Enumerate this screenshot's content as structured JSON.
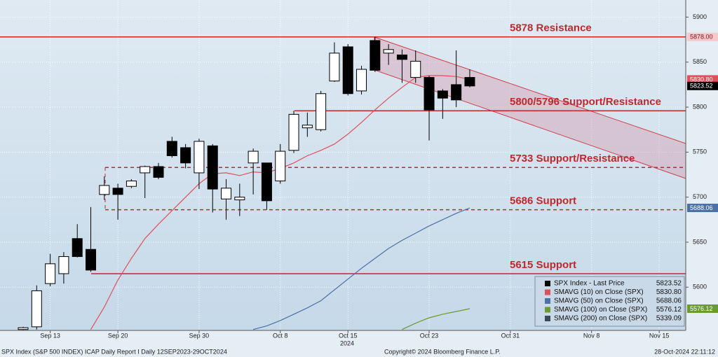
{
  "chart_data": {
    "type": "candlestick",
    "x": [
      0,
      1,
      2,
      3,
      4,
      5,
      6,
      7,
      8,
      9,
      10,
      11,
      12,
      13,
      14,
      15,
      16,
      17,
      18,
      19,
      20,
      21,
      22,
      23,
      24,
      25,
      26,
      27,
      28,
      29,
      30,
      31,
      32,
      33
    ],
    "xlim": [
      -1.71,
      48.96
    ],
    "xticks": [
      {
        "value": 2,
        "label": "Sep 13"
      },
      {
        "value": 7,
        "label": "Sep 20"
      },
      {
        "value": 13,
        "label": "Sep 30"
      },
      {
        "value": 19,
        "label": "Oct 8"
      },
      {
        "value": 24,
        "label": "Oct 15"
      },
      {
        "value": 30,
        "label": "Oct 23"
      },
      {
        "value": 36,
        "label": "Oct 31"
      },
      {
        "value": 42,
        "label": "Nov 8"
      },
      {
        "value": 47,
        "label": "Nov 15"
      }
    ],
    "year_label": "2024",
    "ylim": [
      5552,
      5919
    ],
    "yticks": [
      5600,
      5650,
      5700,
      5750,
      5800,
      5850,
      5900
    ],
    "grid": true,
    "candles": {
      "name": "SPX Index - Last Price",
      "last_label": "5823.52",
      "color": "#000000",
      "open": [
        5553,
        5556,
        5604,
        5615,
        5654,
        5642,
        5703,
        5710,
        5712,
        5727,
        5734,
        5762,
        5755,
        5727,
        5757,
        5698,
        5697,
        5738,
        5738,
        5718,
        5752,
        5777,
        5775,
        5829,
        5867,
        5818,
        5874,
        5860,
        5858,
        5833,
        5833,
        5818,
        5825,
        5833
      ],
      "high": [
        5556,
        5602,
        5637,
        5639,
        5670,
        5689,
        5723,
        5715,
        5720,
        5735,
        5738,
        5767,
        5759,
        5765,
        5759,
        5720,
        5715,
        5754,
        5738,
        5759,
        5796,
        5794,
        5818,
        5872,
        5870,
        5846,
        5878,
        5870,
        5864,
        5863,
        5835,
        5820,
        5863,
        5842
      ],
      "low": [
        5552,
        5553,
        5601,
        5604,
        5633,
        5617,
        5697,
        5675,
        5710,
        5699,
        5720,
        5744,
        5732,
        5709,
        5683,
        5675,
        5679,
        5703,
        5686,
        5715,
        5749,
        5767,
        5773,
        5828,
        5813,
        5814,
        5839,
        5847,
        5827,
        5827,
        5763,
        5787,
        5800,
        5822
      ],
      "close": [
        5555,
        5596,
        5626,
        5634,
        5634,
        5619,
        5713,
        5703,
        5718,
        5734,
        5722,
        5746,
        5738,
        5762,
        5709,
        5710,
        5700,
        5751,
        5696,
        5751,
        5792,
        5780,
        5815,
        5860,
        5815,
        5842,
        5841,
        5864,
        5853,
        5851,
        5797,
        5810,
        5808,
        5823.52
      ]
    },
    "series": [
      {
        "name": "SMAVG (10)  on Close (SPX)",
        "last_label": "5830.80",
        "color": "#e0505a",
        "values": [
          null,
          null,
          null,
          null,
          null,
          5553,
          5578,
          5608,
          5632,
          5654,
          5670,
          5685,
          5700,
          5715,
          5726,
          5727,
          5724,
          5728,
          5727,
          5732,
          5738,
          5746,
          5752,
          5759,
          5770,
          5783,
          5797,
          5810,
          5822,
          5833,
          5835,
          5835,
          5834,
          5830.8
        ]
      },
      {
        "name": "SMAVG (50)  on Close (SPX)",
        "last_label": "5688.06",
        "color": "#4a72a8",
        "values": [
          null,
          null,
          null,
          null,
          null,
          null,
          null,
          null,
          null,
          null,
          null,
          null,
          null,
          null,
          null,
          null,
          null,
          5553,
          5557,
          5563,
          5570,
          5577,
          5585,
          5597,
          5609,
          5621,
          5632,
          5643,
          5652,
          5660,
          5668,
          5675,
          5682,
          5688.06
        ]
      },
      {
        "name": "SMAVG (100)  on Close (SPX)",
        "last_label": "5576.12",
        "color": "#6a9a30",
        "values": [
          null,
          null,
          null,
          null,
          null,
          null,
          null,
          null,
          null,
          null,
          null,
          null,
          null,
          null,
          null,
          null,
          null,
          null,
          null,
          null,
          null,
          null,
          null,
          null,
          null,
          null,
          null,
          null,
          5553,
          5560,
          5566,
          5570,
          5573,
          5576.12
        ]
      },
      {
        "name": "SMAVG (200)  on Close (SPX)",
        "last_label": "5339.09",
        "color": "#3a4a5c",
        "values": [
          null,
          null,
          null,
          null,
          null,
          null,
          null,
          null,
          null,
          null,
          null,
          null,
          null,
          null,
          null,
          null,
          null,
          null,
          null,
          null,
          null,
          null,
          null,
          null,
          null,
          null,
          null,
          null,
          null,
          null,
          null,
          null,
          null,
          null
        ]
      }
    ],
    "levels": [
      {
        "value": 5878,
        "label": "5878 Resistance",
        "style": "solid"
      },
      {
        "value": 5796,
        "label": "5800/5796 Support/Resistance",
        "style": "solid"
      },
      {
        "value": 5733,
        "label": "5733 Support/Resistance",
        "style": "dashed"
      },
      {
        "value": 5686,
        "label": "5686 Support",
        "style": "dashed"
      },
      {
        "value": 5615,
        "label": "5615 Support",
        "style": "solid"
      }
    ],
    "price_tags": [
      {
        "value": 5878,
        "label": "5878.00",
        "color": "#f4c8cc",
        "text_color": "#7a1a20"
      },
      {
        "value": 5830.8,
        "label": "5830.80",
        "color": "#e0505a",
        "text_color": "#ffffff"
      },
      {
        "value": 5823.52,
        "label": "5823.52",
        "color": "#000000",
        "text_color": "#ffffff"
      },
      {
        "value": 5688.06,
        "label": "5688.06",
        "color": "#4a72a8",
        "text_color": "#ffffff"
      },
      {
        "value": 5576.12,
        "label": "5576.12",
        "color": "#6a9a30",
        "text_color": "#ffffff"
      }
    ],
    "footer": {
      "left": "SPX Index (S&P 500 INDEX) ICAP Daily Report I  Daily 12SEP2023-29OCT2024",
      "center": "Copyright© 2024 Bloomberg Finance L.P.",
      "right": "28-Oct-2024 22:11:12"
    }
  }
}
